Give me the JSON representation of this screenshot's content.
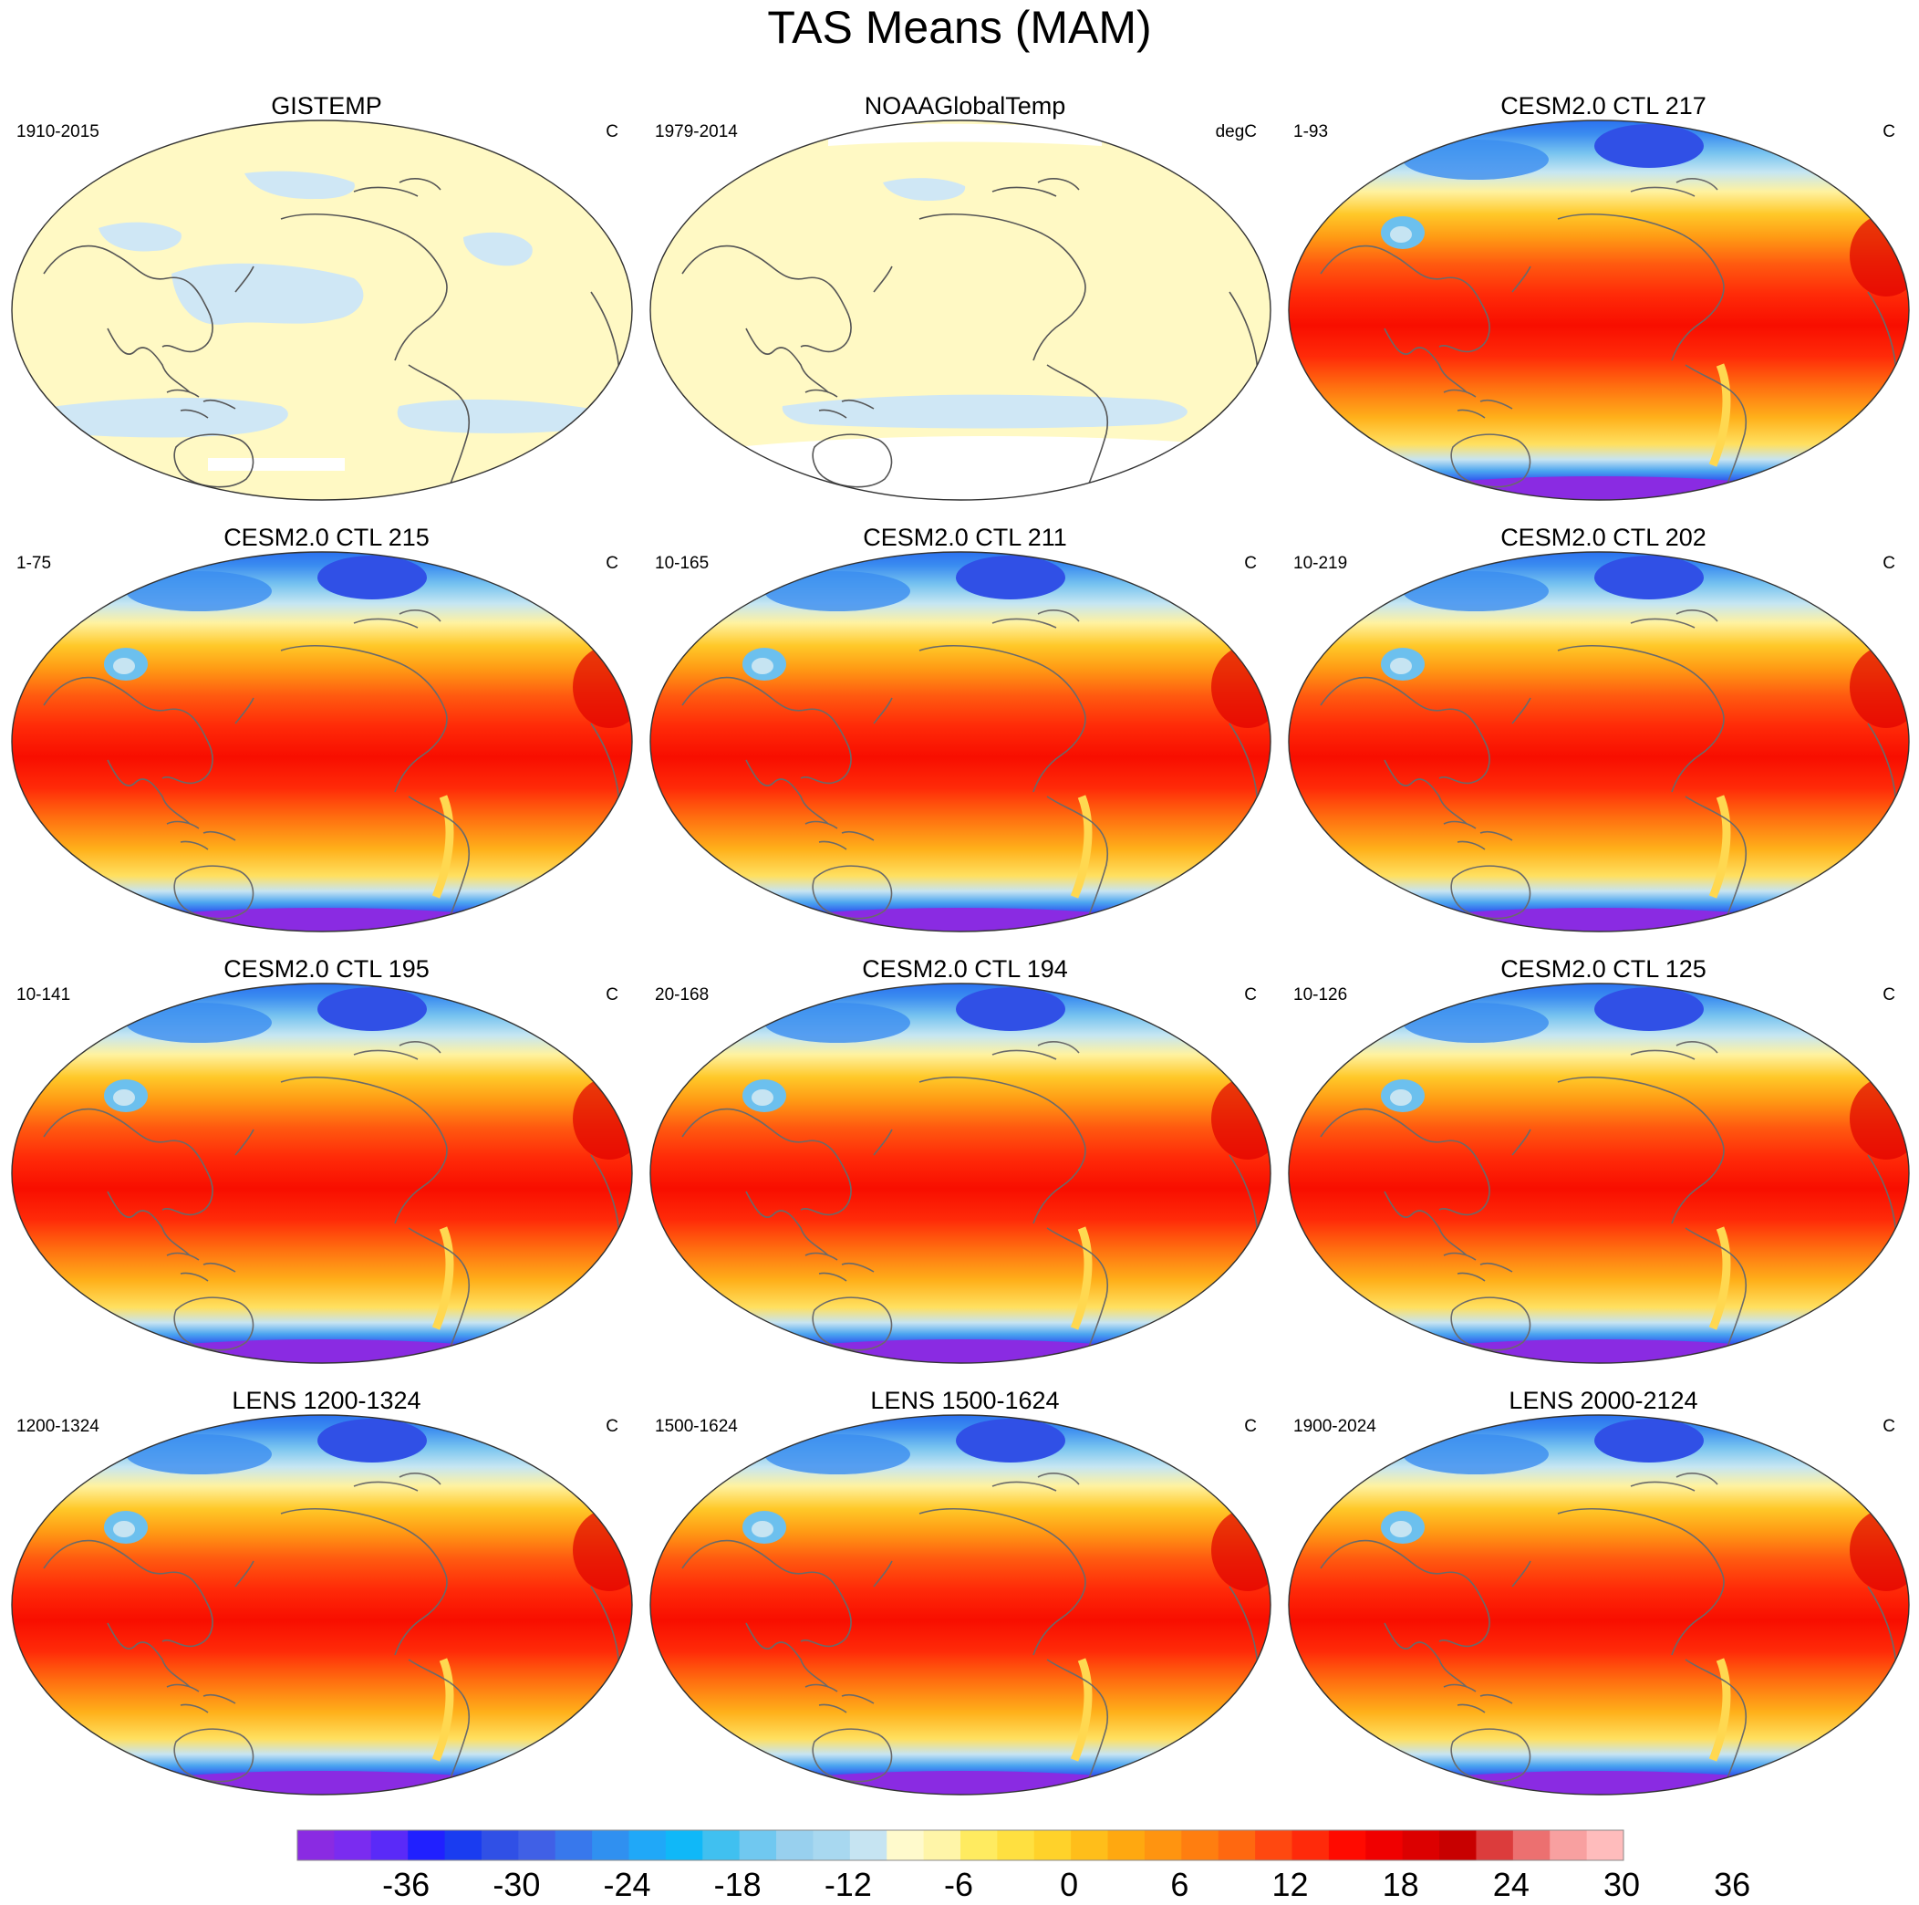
{
  "title": "TAS Means (MAM)",
  "panels": [
    {
      "title": "GISTEMP",
      "left": "1910-2015",
      "right": "C",
      "style": "obs1"
    },
    {
      "title": "NOAAGlobalTemp",
      "left": "1979-2014",
      "right": "degC",
      "style": "obs2"
    },
    {
      "title": "CESM2.0 CTL 217",
      "left": "1-93",
      "right": "C",
      "style": "model"
    },
    {
      "title": "CESM2.0 CTL 215",
      "left": "1-75",
      "right": "C",
      "style": "model"
    },
    {
      "title": "CESM2.0 CTL 211",
      "left": "10-165",
      "right": "C",
      "style": "model"
    },
    {
      "title": "CESM2.0 CTL 202",
      "left": "10-219",
      "right": "C",
      "style": "model"
    },
    {
      "title": "CESM2.0 CTL 195",
      "left": "10-141",
      "right": "C",
      "style": "model"
    },
    {
      "title": "CESM2.0 CTL 194",
      "left": "20-168",
      "right": "C",
      "style": "model"
    },
    {
      "title": "CESM2.0 CTL 125",
      "left": "10-126",
      "right": "C",
      "style": "model"
    },
    {
      "title": "LENS 1200-1324",
      "left": "1200-1324",
      "right": "C",
      "style": "model"
    },
    {
      "title": "LENS 1500-1624",
      "left": "1500-1624",
      "right": "C",
      "style": "model"
    },
    {
      "title": "LENS 2000-2124",
      "left": "1900-2024",
      "right": "C",
      "style": "model"
    }
  ],
  "colorbar": {
    "colors": [
      "#8a2be2",
      "#7a2cf0",
      "#5a2af8",
      "#2020ff",
      "#1a3cf0",
      "#3050e6",
      "#4060e6",
      "#3878ec",
      "#3090f0",
      "#20a8f8",
      "#10b8f8",
      "#40c0f0",
      "#70c8f0",
      "#98d0ee",
      "#a8d8f0",
      "#c6e4f2",
      "#fffacc",
      "#fff5a8",
      "#ffeb60",
      "#ffe040",
      "#ffd22a",
      "#ffbe1a",
      "#ffa810",
      "#ff9410",
      "#ff7e10",
      "#ff6810",
      "#ff4810",
      "#ff2a0a",
      "#ff0a00",
      "#f00000",
      "#dc0000",
      "#c80000",
      "#dc3c3c",
      "#ec7070",
      "#f8a0a0",
      "#ffbcbc"
    ],
    "labels": [
      "-36",
      "-30",
      "-24",
      "-18",
      "-12",
      "-6",
      "0",
      "6",
      "12",
      "18",
      "24",
      "30",
      "36"
    ]
  }
}
